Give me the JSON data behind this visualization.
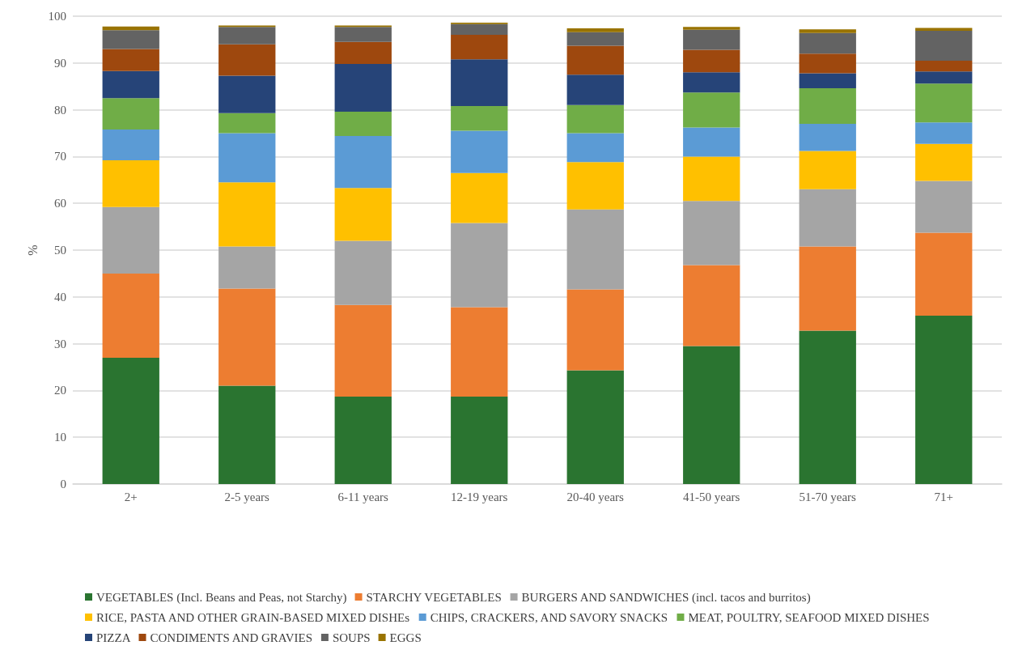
{
  "chart_data": {
    "type": "bar",
    "stacked": true,
    "ylabel": "%",
    "categories": [
      "2+",
      "2-5 years",
      "6-11 years",
      "12-19 years",
      "20-40 years",
      "41-50 years",
      "51-70 years",
      "71+"
    ],
    "ylim": [
      0,
      100
    ],
    "yticks": [
      0,
      10,
      20,
      30,
      40,
      50,
      60,
      70,
      80,
      90,
      100
    ],
    "grid": "y",
    "legend": "bottom",
    "series": [
      {
        "name": "VEGETABLES (Incl. Beans and Peas, not Starchy)",
        "color": "#2a7430",
        "values": [
          27,
          21,
          18.7,
          18.7,
          24.3,
          29.5,
          32.8,
          36
        ]
      },
      {
        "name": "STARCHY VEGETABLES",
        "color": "#ed7d31",
        "values": [
          18,
          20.8,
          19.6,
          19.1,
          17.3,
          17.3,
          18,
          17.7
        ]
      },
      {
        "name": "BURGERS AND SANDWICHES (incl. tacos and burritos)",
        "color": "#a5a5a5",
        "values": [
          14.2,
          9,
          13.7,
          18,
          17.1,
          13.7,
          12.2,
          11.1
        ]
      },
      {
        "name": "RICE, PASTA AND OTHER GRAIN-BASED MIXED DISHEs",
        "color": "#ffc000",
        "values": [
          10,
          13.7,
          11.3,
          10.7,
          10.1,
          9.5,
          8.2,
          7.9
        ]
      },
      {
        "name": "CHIPS, CRACKERS, AND SAVORY SNACKS",
        "color": "#5b9bd5",
        "values": [
          6.6,
          10.5,
          11.1,
          9,
          6.2,
          6.2,
          5.8,
          4.6
        ]
      },
      {
        "name": "MEAT, POULTRY, SEAFOOD MIXED DISHES",
        "color": "#70ad47",
        "values": [
          6.7,
          4.3,
          5.2,
          5.3,
          6,
          7.5,
          7.6,
          8.3
        ]
      },
      {
        "name": "PIZZA",
        "color": "#264478",
        "values": [
          5.8,
          8,
          10.2,
          10,
          6.5,
          4.3,
          3.2,
          2.6
        ]
      },
      {
        "name": "CONDIMENTS AND GRAVIES",
        "color": "#9e480e",
        "values": [
          4.7,
          6.7,
          4.7,
          5.2,
          6.2,
          4.8,
          4.2,
          2.3
        ]
      },
      {
        "name": "SOUPS",
        "color": "#636363",
        "values": [
          4,
          3.7,
          3.2,
          2.3,
          2.9,
          4.3,
          4.4,
          6.4
        ]
      },
      {
        "name": "EGGS",
        "color": "#997300",
        "values": [
          0.8,
          0.3,
          0.3,
          0.3,
          0.8,
          0.6,
          0.8,
          0.6
        ]
      }
    ]
  }
}
